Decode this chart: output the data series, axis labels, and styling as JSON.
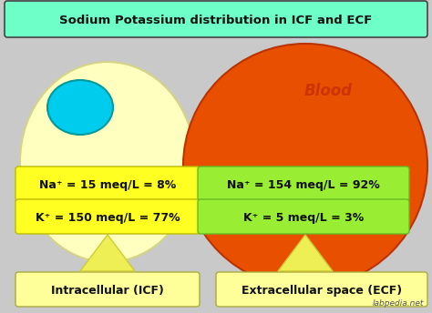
{
  "title": "Sodium Potassium distribution in ICF and ECF",
  "title_bg": "#6effc8",
  "title_color": "#111111",
  "bg_color": "#c9c9c9",
  "left_cell_color": "#ffffc0",
  "left_cell_edge": "#d4d488",
  "left_nucleus_color": "#00ccee",
  "left_nucleus_edge": "#009999",
  "right_cell_color": "#e85000",
  "right_cell_edge": "#bb3300",
  "left_box1_color": "#ffff22",
  "left_box2_color": "#ffff22",
  "right_box1_color": "#99ee33",
  "right_box2_color": "#99ee33",
  "left_label_bg": "#ffff99",
  "right_label_bg": "#ffff99",
  "left_box1_text": "Na⁺ = 15 meq/L = 8%",
  "left_box2_text": "K⁺ = 150 meq/L = 77%",
  "right_box1_text": "Na⁺ = 154 meq/L = 92%",
  "right_box2_text": "K⁺ = 5 meq/L = 3%",
  "blood_label": "Blood",
  "blood_label_color": "#cc3300",
  "left_label": "Intracellular (ICF)",
  "right_label": "Extracellular space (ECF)",
  "watermark": "labpedia.net",
  "text_color": "#111111",
  "arrow_color": "#eeee55",
  "arrow_edge": "#cccc33"
}
